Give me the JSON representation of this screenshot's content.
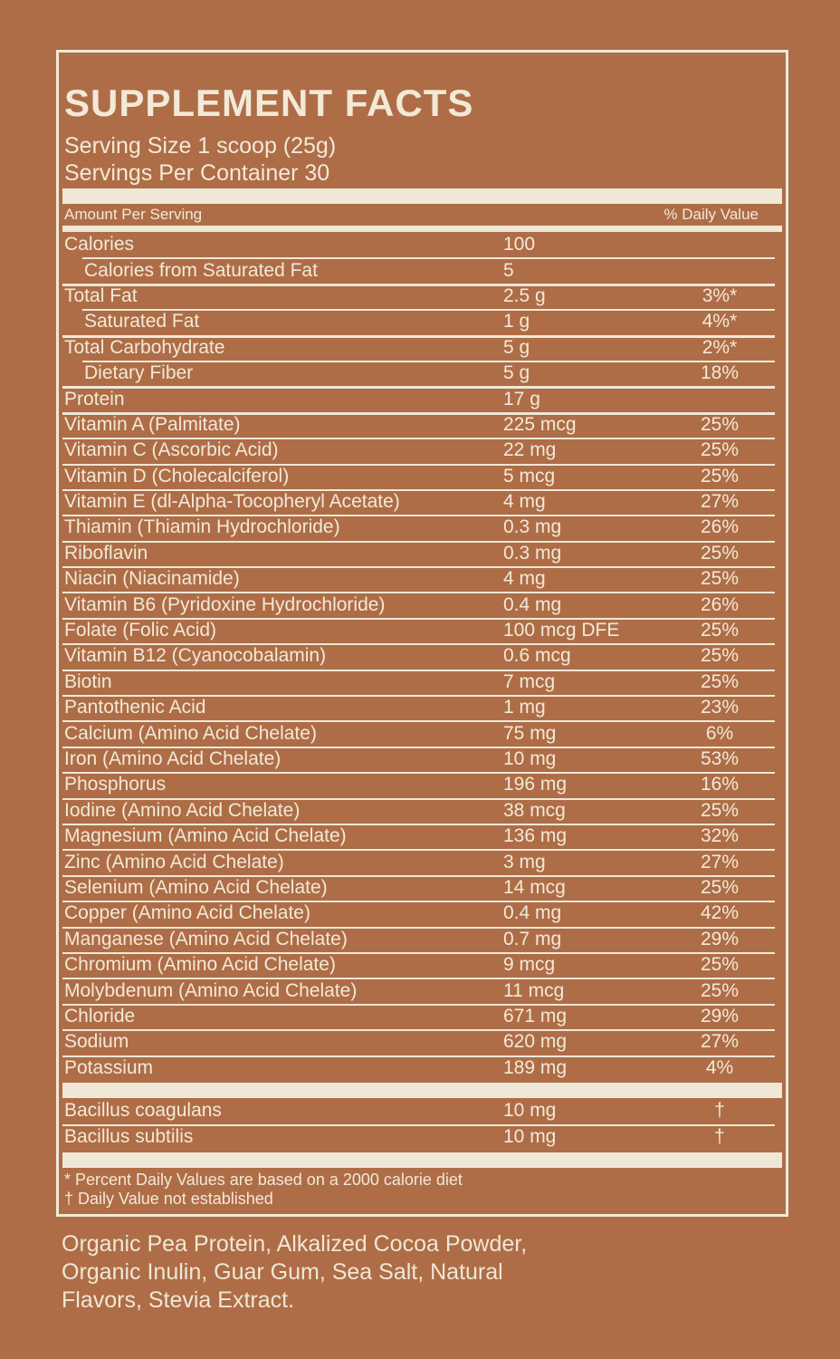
{
  "colors": {
    "background": "#ae6d47",
    "cream_text": "#f2e9d7",
    "cream_bar": "#f0e8d6"
  },
  "panel": {
    "title": "SUPPLEMENT FACTS",
    "serving_size": "Serving Size 1 scoop (25g)",
    "servings_per_container": "Servings Per Container 30",
    "header": {
      "amount_label": "Amount Per Serving",
      "dv_label": "% Daily Value"
    },
    "rows": [
      {
        "name": "Calories",
        "amount": "100",
        "pct": "",
        "indent": false,
        "sep": "none"
      },
      {
        "name": "Calories from Saturated Fat",
        "amount": "5",
        "pct": "",
        "indent": true,
        "sep": "indent"
      },
      {
        "name": "Total Fat",
        "amount": "2.5 g",
        "pct": "3%*",
        "indent": false,
        "sep": "thick"
      },
      {
        "name": "Saturated Fat",
        "amount": "1 g",
        "pct": "4%*",
        "indent": true,
        "sep": "indent"
      },
      {
        "name": "Total Carbohydrate",
        "amount": "5 g",
        "pct": "2%*",
        "indent": false,
        "sep": "thick"
      },
      {
        "name": "Dietary Fiber",
        "amount": "5 g",
        "pct": "18%",
        "indent": true,
        "sep": "indent"
      },
      {
        "name": "Protein",
        "amount": "17 g",
        "pct": "",
        "indent": false,
        "sep": "thick"
      },
      {
        "name": "Vitamin A (Palmitate)",
        "amount": "225 mcg",
        "pct": "25%",
        "indent": false,
        "sep": "thick"
      },
      {
        "name": "Vitamin C (Ascorbic Acid)",
        "amount": "22 mg",
        "pct": "25%",
        "indent": false,
        "sep": "full"
      },
      {
        "name": "Vitamin D (Cholecalciferol)",
        "amount": "5 mcg",
        "pct": "25%",
        "indent": false,
        "sep": "full"
      },
      {
        "name": "Vitamin E (dl-Alpha-Tocopheryl Acetate)",
        "amount": "4 mg",
        "pct": "27%",
        "indent": false,
        "sep": "full"
      },
      {
        "name": "Thiamin (Thiamin Hydrochloride)",
        "amount": "0.3 mg",
        "pct": "26%",
        "indent": false,
        "sep": "full"
      },
      {
        "name": "Riboflavin",
        "amount": "0.3 mg",
        "pct": "25%",
        "indent": false,
        "sep": "full"
      },
      {
        "name": "Niacin (Niacinamide)",
        "amount": "4 mg",
        "pct": "25%",
        "indent": false,
        "sep": "full"
      },
      {
        "name": "Vitamin B6 (Pyridoxine Hydrochloride)",
        "amount": "0.4 mg",
        "pct": "26%",
        "indent": false,
        "sep": "full"
      },
      {
        "name": "Folate (Folic Acid)",
        "amount": "100 mcg DFE",
        "pct": "25%",
        "indent": false,
        "sep": "full"
      },
      {
        "name": "Vitamin B12 (Cyanocobalamin)",
        "amount": "0.6 mcg",
        "pct": "25%",
        "indent": false,
        "sep": "full"
      },
      {
        "name": "Biotin",
        "amount": "7 mcg",
        "pct": "25%",
        "indent": false,
        "sep": "full"
      },
      {
        "name": "Pantothenic Acid",
        "amount": "1 mg",
        "pct": "23%",
        "indent": false,
        "sep": "full"
      },
      {
        "name": "Calcium (Amino Acid Chelate)",
        "amount": "75 mg",
        "pct": "6%",
        "indent": false,
        "sep": "full"
      },
      {
        "name": "Iron (Amino Acid Chelate)",
        "amount": "10 mg",
        "pct": "53%",
        "indent": false,
        "sep": "full"
      },
      {
        "name": "Phosphorus",
        "amount": "196 mg",
        "pct": "16%",
        "indent": false,
        "sep": "full"
      },
      {
        "name": "Iodine (Amino Acid Chelate)",
        "amount": "38 mcg",
        "pct": "25%",
        "indent": false,
        "sep": "full"
      },
      {
        "name": "Magnesium (Amino Acid Chelate)",
        "amount": "136 mg",
        "pct": "32%",
        "indent": false,
        "sep": "full"
      },
      {
        "name": "Zinc (Amino Acid Chelate)",
        "amount": "3 mg",
        "pct": "27%",
        "indent": false,
        "sep": "full"
      },
      {
        "name": "Selenium (Amino Acid Chelate)",
        "amount": "14 mcg",
        "pct": "25%",
        "indent": false,
        "sep": "full"
      },
      {
        "name": "Copper (Amino Acid Chelate)",
        "amount": "0.4 mg",
        "pct": "42%",
        "indent": false,
        "sep": "full"
      },
      {
        "name": "Manganese (Amino Acid Chelate)",
        "amount": "0.7 mg",
        "pct": "29%",
        "indent": false,
        "sep": "full"
      },
      {
        "name": "Chromium (Amino Acid Chelate)",
        "amount": "9 mcg",
        "pct": "25%",
        "indent": false,
        "sep": "full"
      },
      {
        "name": "Molybdenum (Amino Acid Chelate)",
        "amount": "11 mcg",
        "pct": "25%",
        "indent": false,
        "sep": "full"
      },
      {
        "name": "Chloride",
        "amount": "671 mg",
        "pct": "29%",
        "indent": false,
        "sep": "full"
      },
      {
        "name": "Sodium",
        "amount": "620 mg",
        "pct": "27%",
        "indent": false,
        "sep": "full"
      },
      {
        "name": "Potassium",
        "amount": "189 mg",
        "pct": "4%",
        "indent": false,
        "sep": "full"
      }
    ],
    "probiotic_rows": [
      {
        "name": "Bacillus coagulans",
        "amount": "10 mg",
        "pct": "†",
        "indent": false,
        "sep": "none"
      },
      {
        "name": "Bacillus subtilis",
        "amount": "10 mg",
        "pct": "†",
        "indent": false,
        "sep": "full"
      }
    ],
    "footnotes": [
      "* Percent Daily Values are based on a 2000 calorie diet",
      "† Daily Value not established"
    ]
  },
  "ingredients": "Organic Pea Protein, Alkalized Cocoa Powder, Organic Inulin, Guar Gum, Sea Salt, Natural Flavors, Stevia Extract."
}
